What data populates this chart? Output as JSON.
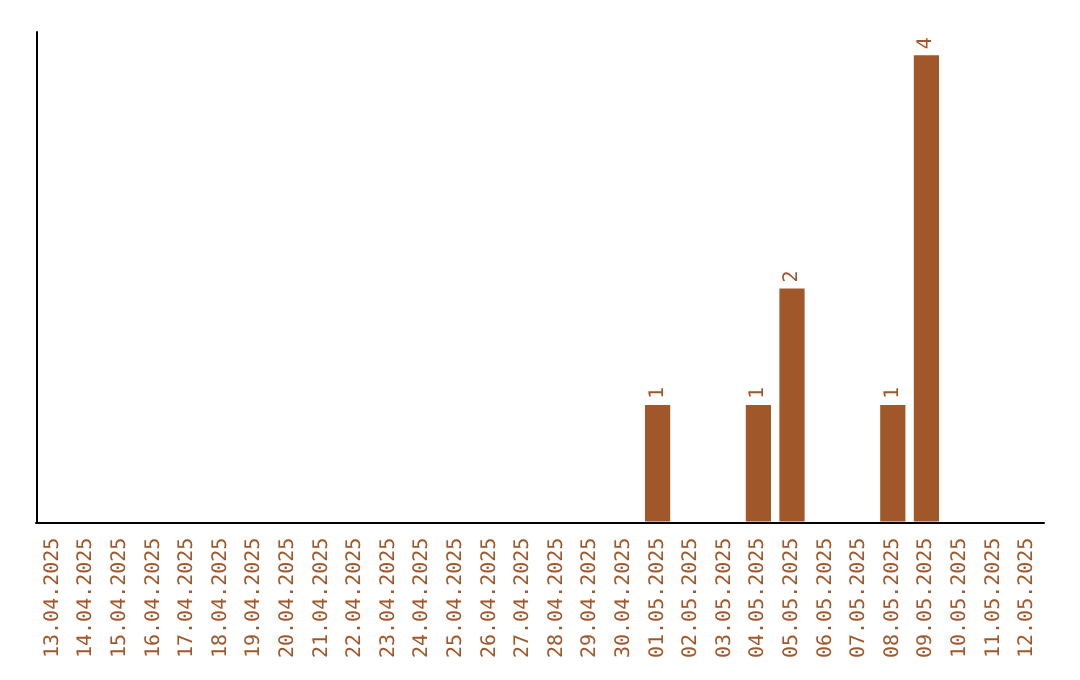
{
  "chart_data": {
    "type": "bar",
    "categories": [
      "13.04.2025",
      "14.04.2025",
      "15.04.2025",
      "16.04.2025",
      "17.04.2025",
      "18.04.2025",
      "19.04.2025",
      "20.04.2025",
      "21.04.2025",
      "22.04.2025",
      "23.04.2025",
      "24.04.2025",
      "25.04.2025",
      "26.04.2025",
      "27.04.2025",
      "28.04.2025",
      "29.04.2025",
      "30.04.2025",
      "01.05.2025",
      "02.05.2025",
      "03.05.2025",
      "04.05.2025",
      "05.05.2025",
      "06.05.2025",
      "07.05.2025",
      "08.05.2025",
      "09.05.2025",
      "10.05.2025",
      "11.05.2025",
      "12.05.2025"
    ],
    "values": [
      null,
      null,
      null,
      null,
      null,
      null,
      null,
      null,
      null,
      null,
      null,
      null,
      null,
      null,
      null,
      null,
      null,
      null,
      1,
      null,
      null,
      1,
      2,
      null,
      null,
      1,
      4,
      null,
      null,
      null
    ],
    "value_labels": [
      null,
      null,
      null,
      null,
      null,
      null,
      null,
      null,
      null,
      null,
      null,
      null,
      null,
      null,
      null,
      null,
      null,
      null,
      "1",
      null,
      null,
      "1",
      "2",
      null,
      null,
      "1",
      "4",
      null,
      null,
      null
    ],
    "color": "#a0572a",
    "ylim": [
      0,
      4.2
    ],
    "tick_labels": "x",
    "grid": false
  }
}
